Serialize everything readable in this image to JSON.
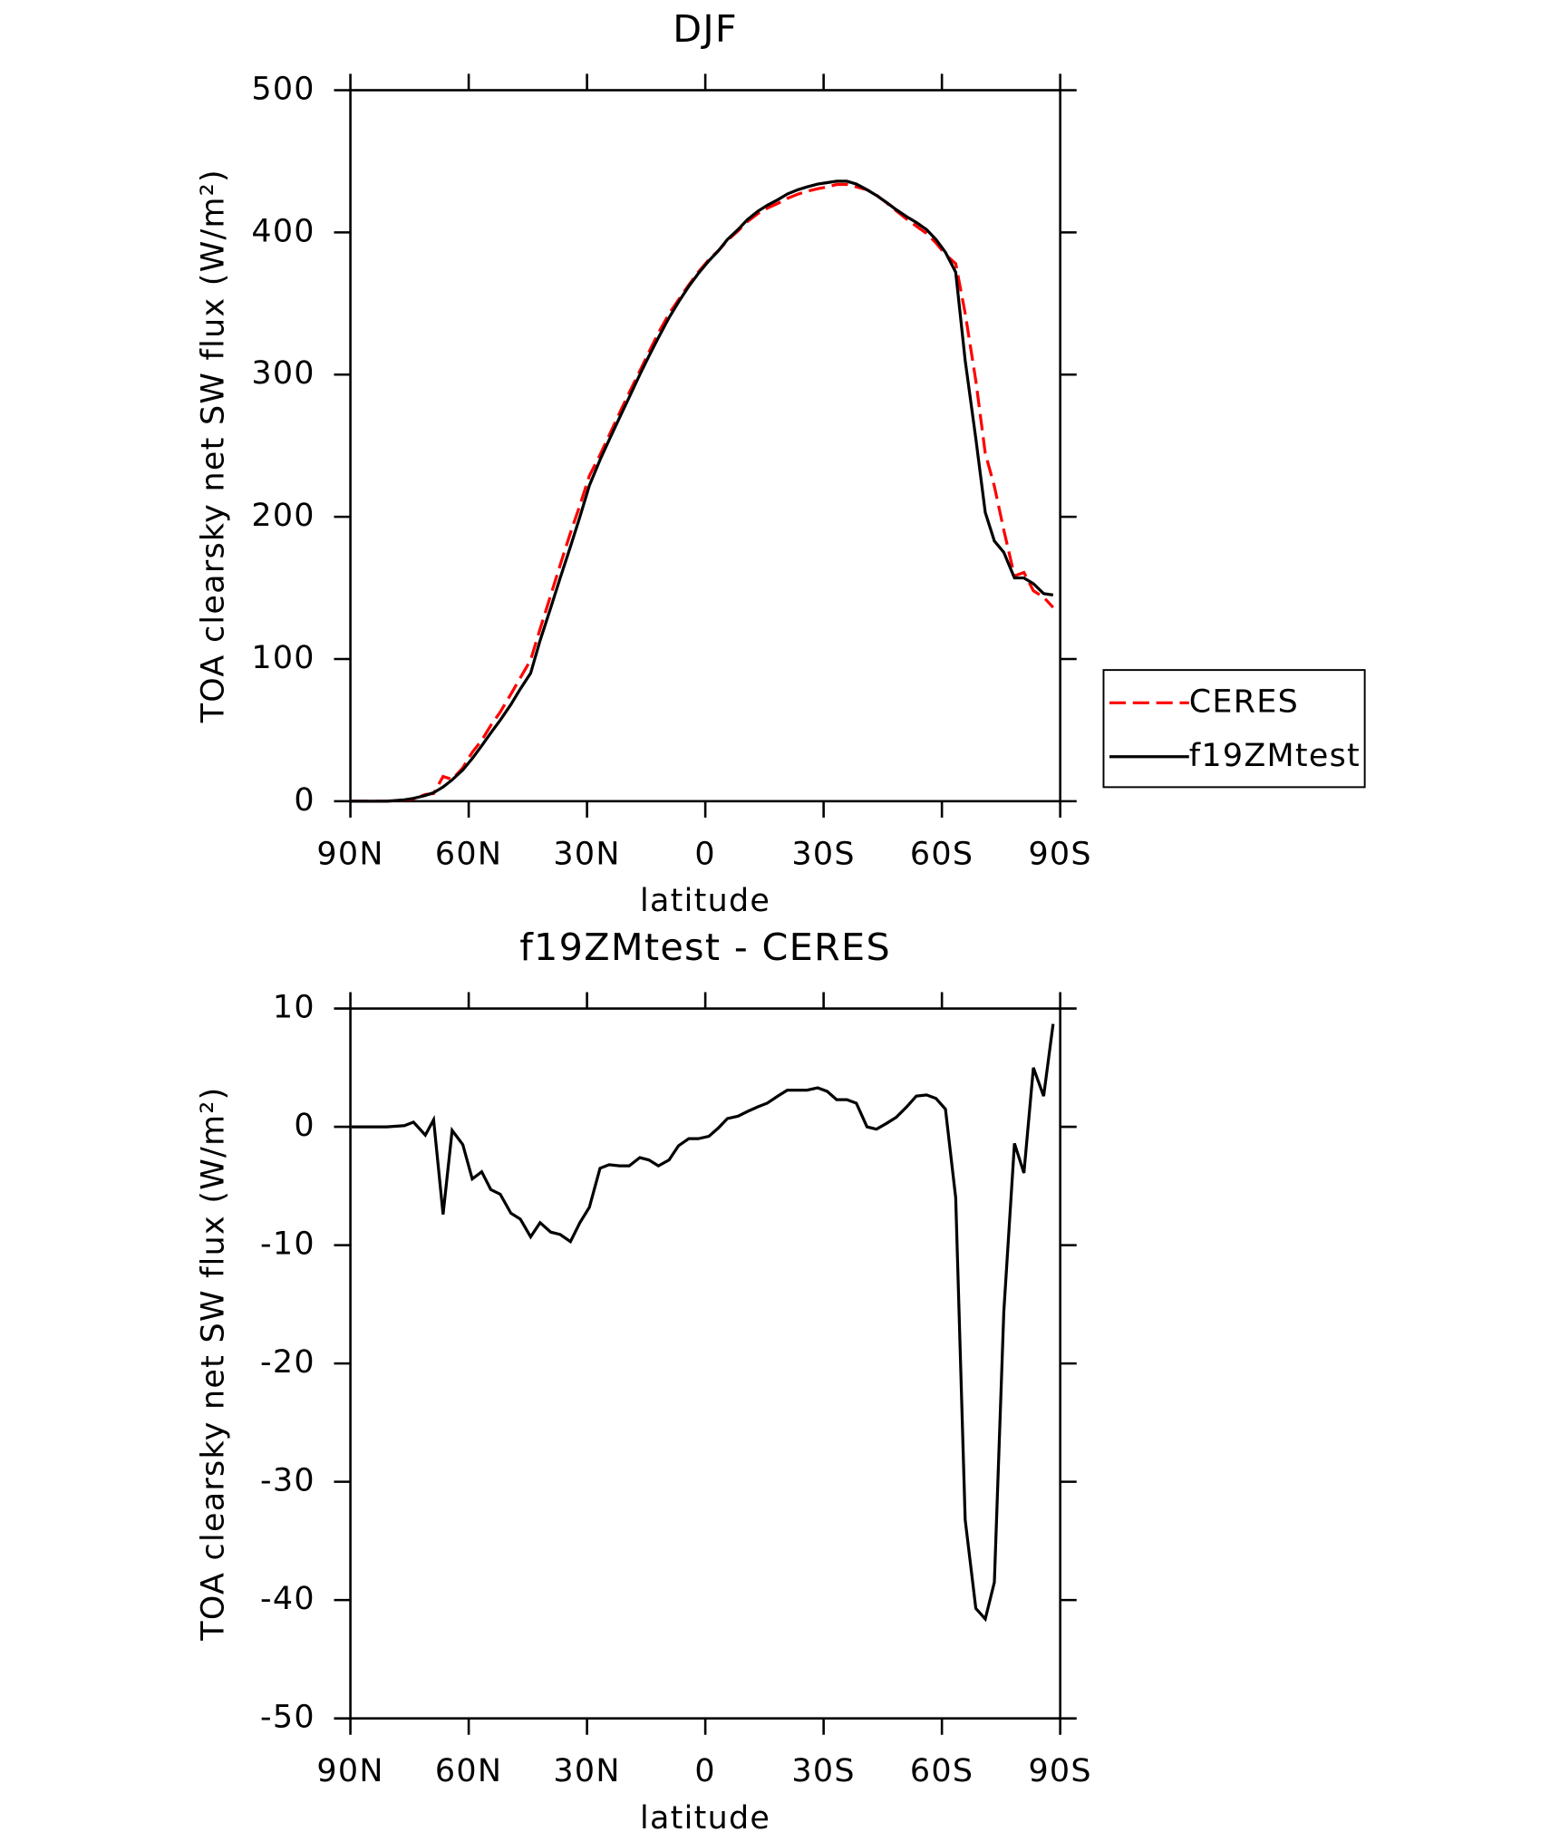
{
  "chart_data": [
    {
      "type": "line",
      "title": "DJF",
      "x_label": "latitude",
      "y_label": "TOA clearsky net SW flux (W/m²)",
      "xlim": [
        90,
        -90
      ],
      "xticks": [
        {
          "value": 90,
          "label": "90N"
        },
        {
          "value": 60,
          "label": "60N"
        },
        {
          "value": 30,
          "label": "30N"
        },
        0,
        {
          "value": -30,
          "label": "30S"
        },
        {
          "value": -60,
          "label": "60S"
        },
        {
          "value": -90,
          "label": "90S"
        }
      ],
      "ylim": [
        0,
        500
      ],
      "yticks": [
        0,
        100,
        200,
        300,
        400,
        500
      ],
      "grid": false,
      "legend_position": "right",
      "x": [
        89.7,
        80.8,
        76.3,
        74,
        71,
        68.9,
        66.5,
        64.2,
        61.5,
        59.1,
        56.7,
        54.4,
        52,
        49.3,
        46.9,
        44.3,
        41.9,
        39.2,
        36.8,
        34.2,
        31.8,
        29.4,
        26.7,
        24.4,
        21.7,
        19.3,
        16.6,
        14.3,
        11.9,
        9.2,
        6.8,
        4.2,
        1.8,
        -0.9,
        -3.3,
        -5.6,
        -8.3,
        -10.7,
        -13.4,
        -15.7,
        -18.4,
        -20.8,
        -23.5,
        -25.8,
        -28.5,
        -30.9,
        -33.3,
        -35.9,
        -38.3,
        -41,
        -43.4,
        -46,
        -48.4,
        -51.1,
        -53.5,
        -56.1,
        -58.5,
        -60.9,
        -63.5,
        -65.9,
        -68.6,
        -71,
        -73.3,
        -75.7,
        -78.4,
        -80.8,
        -83.2,
        -85.8,
        -88.2
      ],
      "series": [
        {
          "name": "CERES",
          "color": "#ff0000",
          "dashed": true,
          "values": [
            0,
            0,
            0.9,
            1.6,
            4.7,
            5.4,
            17.4,
            15.3,
            23.5,
            34.4,
            42.8,
            53.3,
            62.7,
            75.3,
            86.8,
            99.3,
            121.1,
            144.9,
            166.1,
            188.7,
            208.1,
            228.8,
            243.5,
            257.2,
            273.3,
            287.3,
            302.6,
            315.8,
            329.3,
            342.8,
            352.6,
            363,
            372,
            380.8,
            387.1,
            394.3,
            401.1,
            407.7,
            413.3,
            417,
            420.4,
            423.9,
            426.9,
            428.9,
            430.7,
            432,
            433.7,
            433.7,
            432,
            430,
            426.2,
            420.7,
            415.2,
            409.3,
            404.4,
            399.3,
            392.6,
            384.5,
            378,
            343.2,
            295.7,
            244.6,
            221.5,
            190.6,
            158.4,
            160.9,
            148,
            143.4,
            136.3
          ]
        },
        {
          "name": "f19ZMtest",
          "color": "#000000",
          "dashed": false,
          "values": [
            0,
            0,
            1,
            2,
            4,
            6,
            10,
            15,
            22,
            30,
            39,
            48,
            57,
            68,
            79,
            90,
            113,
            136,
            157,
            179,
            200,
            222,
            240,
            254,
            270,
            284,
            300,
            313,
            326,
            340,
            351,
            362,
            371,
            380,
            387,
            395,
            402,
            409,
            415,
            419,
            423,
            427,
            430,
            432,
            434,
            435,
            436,
            436,
            434,
            430,
            426,
            421,
            416,
            411,
            407,
            402,
            395,
            386,
            372,
            310,
            255,
            203,
            183,
            175,
            157,
            157,
            153,
            146,
            145
          ]
        }
      ]
    },
    {
      "type": "line",
      "title": "f19ZMtest - CERES",
      "x_label": "latitude",
      "y_label": "TOA clearsky net SW flux (W/m²)",
      "xlim": [
        90,
        -90
      ],
      "xticks": [
        {
          "value": 90,
          "label": "90N"
        },
        {
          "value": 60,
          "label": "60N"
        },
        {
          "value": 30,
          "label": "30N"
        },
        0,
        {
          "value": -30,
          "label": "30S"
        },
        {
          "value": -60,
          "label": "60S"
        },
        {
          "value": -90,
          "label": "90S"
        }
      ],
      "ylim": [
        -50,
        10
      ],
      "yticks": [
        -50,
        -40,
        -30,
        -20,
        -10,
        0,
        10
      ],
      "grid": false,
      "x": [
        89.7,
        80.8,
        76.3,
        74,
        71,
        68.9,
        66.5,
        64.2,
        61.5,
        59.1,
        56.7,
        54.4,
        52,
        49.3,
        46.9,
        44.3,
        41.9,
        39.2,
        36.8,
        34.2,
        31.8,
        29.4,
        26.7,
        24.4,
        21.7,
        19.3,
        16.6,
        14.3,
        11.9,
        9.2,
        6.8,
        4.2,
        1.8,
        -0.9,
        -3.3,
        -5.6,
        -8.3,
        -10.7,
        -13.4,
        -15.7,
        -18.4,
        -20.8,
        -23.5,
        -25.8,
        -28.5,
        -30.9,
        -33.3,
        -35.9,
        -38.3,
        -41,
        -43.4,
        -46,
        -48.4,
        -51.1,
        -53.5,
        -56.1,
        -58.5,
        -60.9,
        -63.5,
        -65.9,
        -68.6,
        -71,
        -73.3,
        -75.7,
        -78.4,
        -80.8,
        -83.2,
        -85.8,
        -88.2
      ],
      "series": [
        {
          "color": "#000000",
          "dashed": false,
          "values": [
            0,
            0,
            0.1,
            0.4,
            -0.7,
            0.6,
            -7.4,
            -0.3,
            -1.5,
            -4.4,
            -3.8,
            -5.3,
            -5.7,
            -7.3,
            -7.8,
            -9.3,
            -8.1,
            -8.9,
            -9.1,
            -9.7,
            -8.1,
            -6.8,
            -3.5,
            -3.2,
            -3.3,
            -3.3,
            -2.6,
            -2.8,
            -3.3,
            -2.8,
            -1.6,
            -1,
            -1,
            -0.8,
            -0.1,
            0.7,
            0.9,
            1.3,
            1.7,
            2,
            2.6,
            3.1,
            3.1,
            3.1,
            3.3,
            3,
            2.3,
            2.3,
            2,
            0,
            -0.2,
            0.3,
            0.8,
            1.7,
            2.6,
            2.7,
            2.4,
            1.5,
            -6,
            -33.2,
            -40.7,
            -41.6,
            -38.5,
            -15.6,
            -1.4,
            -3.9,
            5,
            2.6,
            8.7
          ]
        }
      ]
    }
  ]
}
